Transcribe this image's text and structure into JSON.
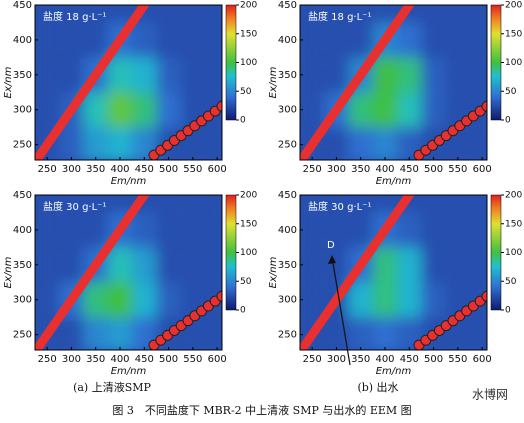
{
  "chart_data": [
    {
      "type": "heatmap",
      "annotation": "盐度 18 g·L⁻¹",
      "xlabel": "Em/nm",
      "ylabel": "Ex/nm",
      "x": [
        250,
        300,
        350,
        400,
        450,
        500,
        550,
        600
      ],
      "y": [
        250,
        300,
        350,
        400,
        450
      ],
      "z": [
        [
          0,
          30,
          60,
          70,
          50,
          20,
          5,
          0
        ],
        [
          0,
          30,
          80,
          110,
          90,
          40,
          10,
          0
        ],
        [
          0,
          0,
          40,
          80,
          70,
          30,
          5,
          0
        ],
        [
          0,
          0,
          20,
          40,
          30,
          10,
          0,
          0
        ],
        [
          0,
          0,
          0,
          0,
          0,
          0,
          0,
          0
        ]
      ],
      "xlim": [
        225,
        610
      ],
      "ylim": [
        228,
        450
      ],
      "xticks": [
        250,
        300,
        350,
        400,
        450,
        500,
        550,
        600
      ],
      "yticks": [
        250,
        300,
        350,
        400,
        450
      ],
      "colorbar": {
        "lim": [
          0,
          200
        ],
        "ticks": [
          0,
          50,
          100,
          150,
          200
        ]
      }
    },
    {
      "type": "heatmap",
      "annotation": "盐度 18 g·L⁻¹",
      "xlabel": "Em/nm",
      "ylabel": "Ex/nm",
      "x": [
        250,
        300,
        350,
        400,
        450,
        500,
        550,
        600
      ],
      "y": [
        250,
        300,
        350,
        400,
        450
      ],
      "z": [
        [
          0,
          20,
          40,
          50,
          30,
          10,
          0,
          0
        ],
        [
          0,
          40,
          90,
          100,
          80,
          30,
          5,
          0
        ],
        [
          0,
          0,
          50,
          100,
          90,
          30,
          0,
          0
        ],
        [
          0,
          0,
          20,
          50,
          40,
          10,
          0,
          0
        ],
        [
          0,
          0,
          0,
          0,
          0,
          0,
          0,
          0
        ]
      ],
      "xlim": [
        225,
        610
      ],
      "ylim": [
        228,
        450
      ],
      "xticks": [
        250,
        300,
        350,
        400,
        450,
        500,
        550,
        600
      ],
      "yticks": [
        250,
        300,
        350,
        400,
        450
      ],
      "colorbar": {
        "lim": [
          0,
          200
        ],
        "ticks": [
          0,
          50,
          100,
          150,
          200
        ]
      }
    },
    {
      "type": "heatmap",
      "annotation": "盐度 30 g·L⁻¹",
      "xlabel": "Em/nm",
      "ylabel": "Ex/nm",
      "x": [
        250,
        300,
        350,
        400,
        450,
        500,
        550,
        600
      ],
      "y": [
        250,
        300,
        350,
        400,
        450
      ],
      "z": [
        [
          0,
          20,
          50,
          60,
          40,
          15,
          0,
          0
        ],
        [
          0,
          40,
          90,
          100,
          70,
          30,
          5,
          0
        ],
        [
          0,
          0,
          40,
          80,
          60,
          20,
          0,
          0
        ],
        [
          0,
          0,
          15,
          40,
          30,
          10,
          0,
          0
        ],
        [
          0,
          0,
          0,
          0,
          0,
          0,
          0,
          0
        ]
      ],
      "xlim": [
        225,
        610
      ],
      "ylim": [
        228,
        450
      ],
      "xticks": [
        250,
        300,
        350,
        400,
        450,
        500,
        550,
        600
      ],
      "yticks": [
        250,
        300,
        350,
        400,
        450
      ],
      "colorbar": {
        "lim": [
          0,
          200
        ],
        "ticks": [
          0,
          50,
          100,
          150,
          200
        ]
      }
    },
    {
      "type": "heatmap",
      "annotation": "盐度 30 g·L⁻¹",
      "arrow_label": "D",
      "xlabel": "Em/nm",
      "ylabel": "Ex/nm",
      "x": [
        250,
        300,
        350,
        400,
        450,
        500,
        550,
        600
      ],
      "y": [
        250,
        300,
        350,
        400,
        450
      ],
      "z": [
        [
          0,
          10,
          30,
          40,
          30,
          10,
          0,
          0
        ],
        [
          0,
          20,
          70,
          90,
          70,
          30,
          0,
          0
        ],
        [
          0,
          0,
          40,
          90,
          70,
          20,
          0,
          0
        ],
        [
          0,
          0,
          10,
          40,
          30,
          5,
          0,
          0
        ],
        [
          0,
          0,
          0,
          0,
          0,
          0,
          0,
          0
        ]
      ],
      "xlim": [
        225,
        610
      ],
      "ylim": [
        228,
        450
      ],
      "xticks": [
        250,
        300,
        350,
        400,
        450,
        500,
        550,
        600
      ],
      "yticks": [
        250,
        300,
        350,
        400,
        450
      ],
      "colorbar": {
        "lim": [
          0,
          200
        ],
        "ticks": [
          0,
          50,
          100,
          150,
          200
        ]
      }
    }
  ],
  "panel_labels": [
    "(a) 上清液SMP",
    "(b) 出水"
  ],
  "caption": "图 3　不同盐度下 MBR-2 中上清液 SMP 与出水的 EEM 图",
  "watermark": "水博网"
}
